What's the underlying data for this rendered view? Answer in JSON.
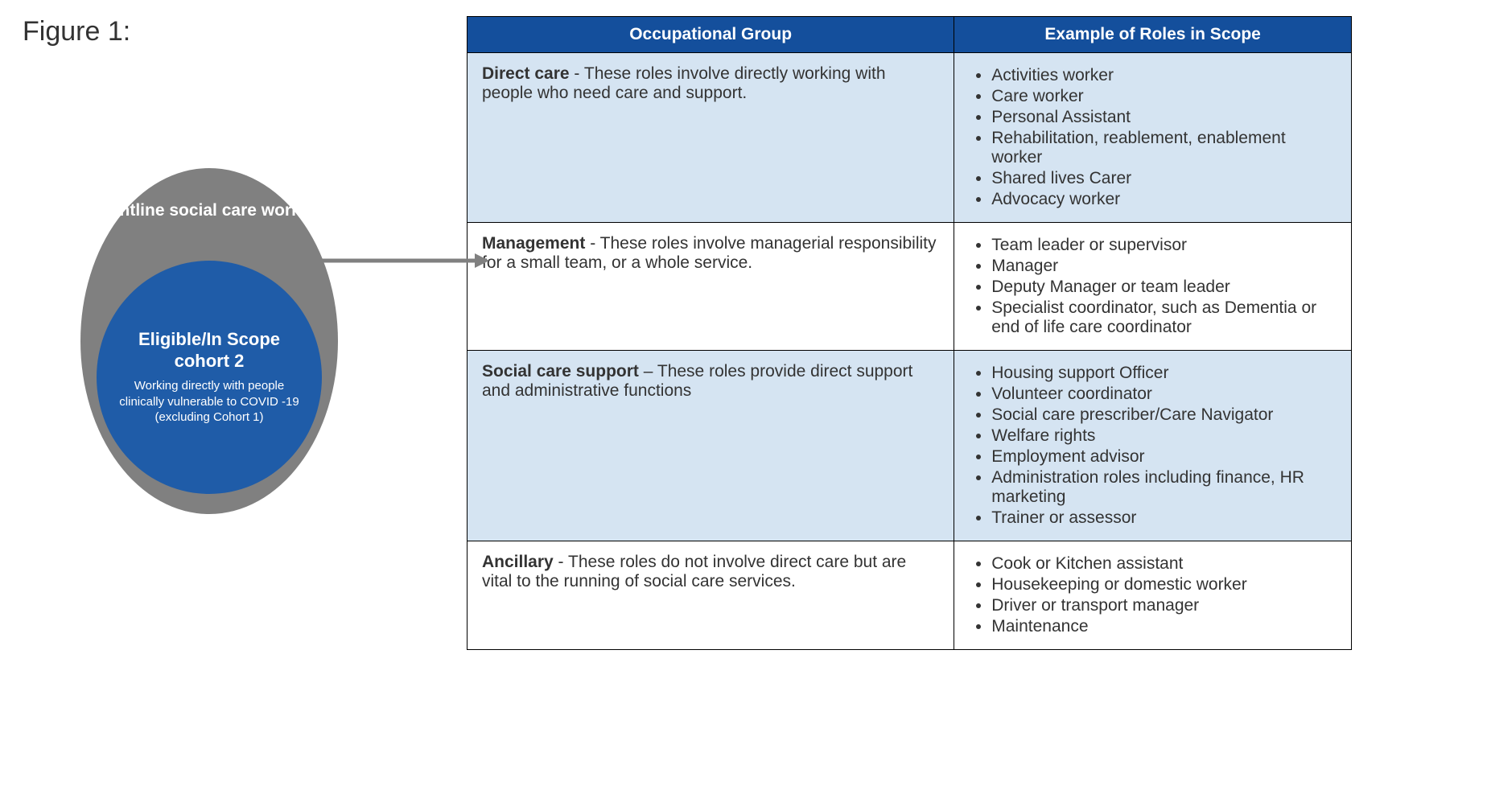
{
  "figure_title": "Figure 1:",
  "diagram": {
    "outer_ellipse": {
      "label": "Frontline social care workers",
      "fill": "#808080",
      "text_color": "#ffffff"
    },
    "inner_ellipse": {
      "title": "Eligible/In Scope cohort 2",
      "subtitle": "Working directly with people clinically vulnerable to COVID -19 (excluding Cohort 1)",
      "fill": "#1f5ca8",
      "text_color": "#ffffff"
    },
    "arrow_color": "#808080"
  },
  "table": {
    "header_bg": "#144f9c",
    "header_text_color": "#ffffff",
    "alt_row_bg": "#d5e4f2",
    "border_color": "#000000",
    "columns": [
      "Occupational Group",
      "Example of Roles in Scope"
    ],
    "rows": [
      {
        "alt": true,
        "group_name": "Direct care",
        "group_desc": " - These roles involve directly working with people who need care and support.",
        "roles": [
          "Activities worker",
          "Care worker",
          "Personal Assistant",
          "Rehabilitation, reablement, enablement worker",
          "Shared lives Carer",
          "Advocacy worker"
        ]
      },
      {
        "alt": false,
        "group_name": "Management",
        "group_desc": " - These roles involve managerial responsibility for a small team, or a whole service.",
        "roles": [
          "Team leader or supervisor",
          "Manager",
          "Deputy Manager or team leader",
          "Specialist coordinator, such as Dementia or end of life care coordinator"
        ]
      },
      {
        "alt": true,
        "group_name": "Social care support",
        "group_desc": " – These roles provide direct support and administrative functions",
        "roles": [
          "Housing support Officer",
          "Volunteer coordinator",
          "Social care prescriber/Care Navigator",
          "Welfare rights",
          "Employment advisor",
          "Administration roles including finance, HR marketing",
          "Trainer or assessor"
        ]
      },
      {
        "alt": false,
        "group_name": "Ancillary",
        "group_desc": " - These roles do not involve direct care but are vital to the running of social care services.",
        "roles": [
          "Cook or Kitchen assistant",
          "Housekeeping or domestic worker",
          "Driver or transport manager",
          "Maintenance"
        ]
      }
    ]
  }
}
